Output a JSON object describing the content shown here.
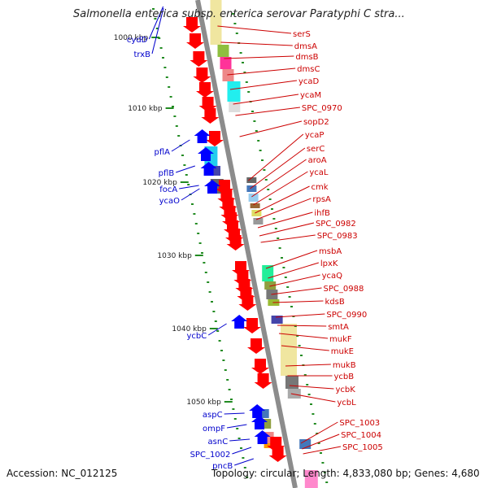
{
  "title": "Salmonella enterica subsp. enterica serovar Paratyphi C stra...",
  "footer": {
    "accession": "Accession: NC_012125",
    "info": "Topology: circular; Length: 4,833,080 bp; Genes: 4,680"
  },
  "colors": {
    "backbone": "#8c8c8c",
    "plus_strand_label": "#cc0000",
    "minus_strand_label": "#0000cc",
    "tick_mark": "#228b22",
    "gene_red": "#ff0000",
    "gene_blue": "#0000ff"
  },
  "ticks": [
    "1000 kbp",
    "1010 kbp",
    "1020 kbp",
    "1030 kbp",
    "1040 kbp",
    "1050 kbp"
  ],
  "genes_right": [
    "serS",
    "dmsA",
    "dmsB",
    "dmsC",
    "ycaD",
    "ycaM",
    "SPC_0970",
    "sopD2",
    "ycaP",
    "serC",
    "aroA",
    "ycaL",
    "cmk",
    "rpsA",
    "ihfB",
    "SPC_0982",
    "SPC_0983",
    "msbA",
    "lpxK",
    "ycaQ",
    "SPC_0988",
    "kdsB",
    "SPC_0990",
    "smtA",
    "mukF",
    "mukE",
    "mukB",
    "ycbB",
    "ycbK",
    "ycbL",
    "SPC_1003",
    "SPC_1004",
    "SPC_1005"
  ],
  "genes_left": [
    "cydD",
    "trxB",
    "pflA",
    "pflB",
    "focA",
    "ycaO",
    "ycbC",
    "aspC",
    "ompF",
    "asnC",
    "SPC_1002",
    "pncB"
  ]
}
